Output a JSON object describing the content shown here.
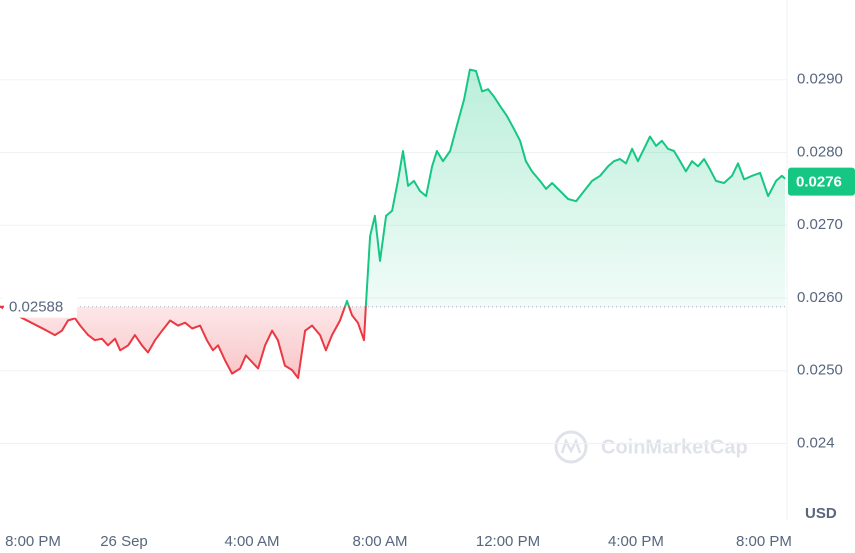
{
  "chart_data": {
    "type": "line",
    "x": [
      0.13,
      1.59,
      1.84,
      2.06,
      2.25,
      2.47,
      2.63,
      2.88,
      3.09,
      3.31,
      3.5,
      3.72,
      3.88,
      4.13,
      4.34,
      4.56,
      4.75,
      4.97,
      5.19,
      5.44,
      5.69,
      5.91,
      6.13,
      6.38,
      6.59,
      6.78,
      6.94,
      7.16,
      7.38,
      7.63,
      7.81,
      8.0,
      8.19,
      8.41,
      8.63,
      8.81,
      9.03,
      9.25,
      9.44,
      9.66,
      9.88,
      10.13,
      10.31,
      10.5,
      10.75,
      10.97,
      11.13,
      11.31,
      11.5,
      11.56,
      11.69,
      11.84,
      12.0,
      12.19,
      12.38,
      12.56,
      12.72,
      12.88,
      13.06,
      13.25,
      13.44,
      13.63,
      13.78,
      13.97,
      14.19,
      14.44,
      14.63,
      14.81,
      15.0,
      15.19,
      15.38,
      15.56,
      15.75,
      15.97,
      16.19,
      16.38,
      16.56,
      16.75,
      17.0,
      17.19,
      17.38,
      17.63,
      17.88,
      18.13,
      18.38,
      18.63,
      18.88,
      19.13,
      19.31,
      19.5,
      19.69,
      19.88,
      20.06,
      20.25,
      20.44,
      20.63,
      20.81,
      21.0,
      21.19,
      21.38,
      21.56,
      21.75,
      21.94,
      22.13,
      22.31,
      22.5,
      22.75,
      23.0,
      23.19,
      23.38,
      23.63,
      23.88,
      24.13,
      24.38,
      24.56,
      24.66
    ],
    "values": [
      0.02588,
      0.02555,
      0.02549,
      0.02555,
      0.02569,
      0.02572,
      0.02562,
      0.02549,
      0.02542,
      0.02544,
      0.02535,
      0.02544,
      0.02528,
      0.02535,
      0.02549,
      0.02535,
      0.02525,
      0.02542,
      0.02555,
      0.02569,
      0.02562,
      0.02566,
      0.02558,
      0.02562,
      0.02542,
      0.02528,
      0.02535,
      0.02514,
      0.02496,
      0.02503,
      0.02521,
      0.02512,
      0.02503,
      0.02535,
      0.02555,
      0.02542,
      0.02507,
      0.02501,
      0.0249,
      0.02555,
      0.02562,
      0.02549,
      0.02528,
      0.02549,
      0.02569,
      0.02596,
      0.02576,
      0.02566,
      0.02542,
      0.0259,
      0.02685,
      0.02713,
      0.02651,
      0.02713,
      0.0272,
      0.02761,
      0.02802,
      0.02754,
      0.02761,
      0.02747,
      0.0274,
      0.02781,
      0.02802,
      0.02788,
      0.02802,
      0.02843,
      0.02873,
      0.02914,
      0.02912,
      0.02884,
      0.02887,
      0.02877,
      0.02864,
      0.0285,
      0.02832,
      0.02816,
      0.02788,
      0.02774,
      0.02761,
      0.0275,
      0.02758,
      0.02747,
      0.02736,
      0.02733,
      0.02747,
      0.02761,
      0.02768,
      0.02781,
      0.02788,
      0.02791,
      0.02785,
      0.02805,
      0.02788,
      0.02805,
      0.02822,
      0.02809,
      0.02816,
      0.02805,
      0.02802,
      0.02788,
      0.02774,
      0.02788,
      0.02781,
      0.02791,
      0.02777,
      0.02761,
      0.02758,
      0.02768,
      0.02785,
      0.02763,
      0.02768,
      0.02772,
      0.0274,
      0.02761,
      0.02768,
      0.02764
    ],
    "up_color": "#16c784",
    "down_color": "#ea3943",
    "baseline": 0.02588,
    "current_price": 0.0276,
    "xlim": [
      0.125,
      24.72
    ],
    "xticks": [
      {
        "value": 0,
        "label": "8:00 PM"
      },
      {
        "value": 4,
        "label": "26 Sep"
      },
      {
        "value": 8,
        "label": "4:00 AM"
      },
      {
        "value": 12,
        "label": "8:00 AM"
      },
      {
        "value": 16,
        "label": "12:00 PM"
      },
      {
        "value": 20,
        "label": "4:00 PM"
      },
      {
        "value": 24,
        "label": "8:00 PM"
      }
    ],
    "ylim": [
      0.0238,
      0.03
    ],
    "yticks": [
      {
        "value": 0.029,
        "label": "0.0290"
      },
      {
        "value": 0.028,
        "label": "0.0280"
      },
      {
        "value": 0.027,
        "label": "0.0270"
      },
      {
        "value": 0.026,
        "label": "0.0260"
      },
      {
        "value": 0.025,
        "label": "0.0250"
      },
      0.024
    ],
    "grid": true,
    "currency": "USD",
    "watermark": "CoinMarketCap"
  }
}
